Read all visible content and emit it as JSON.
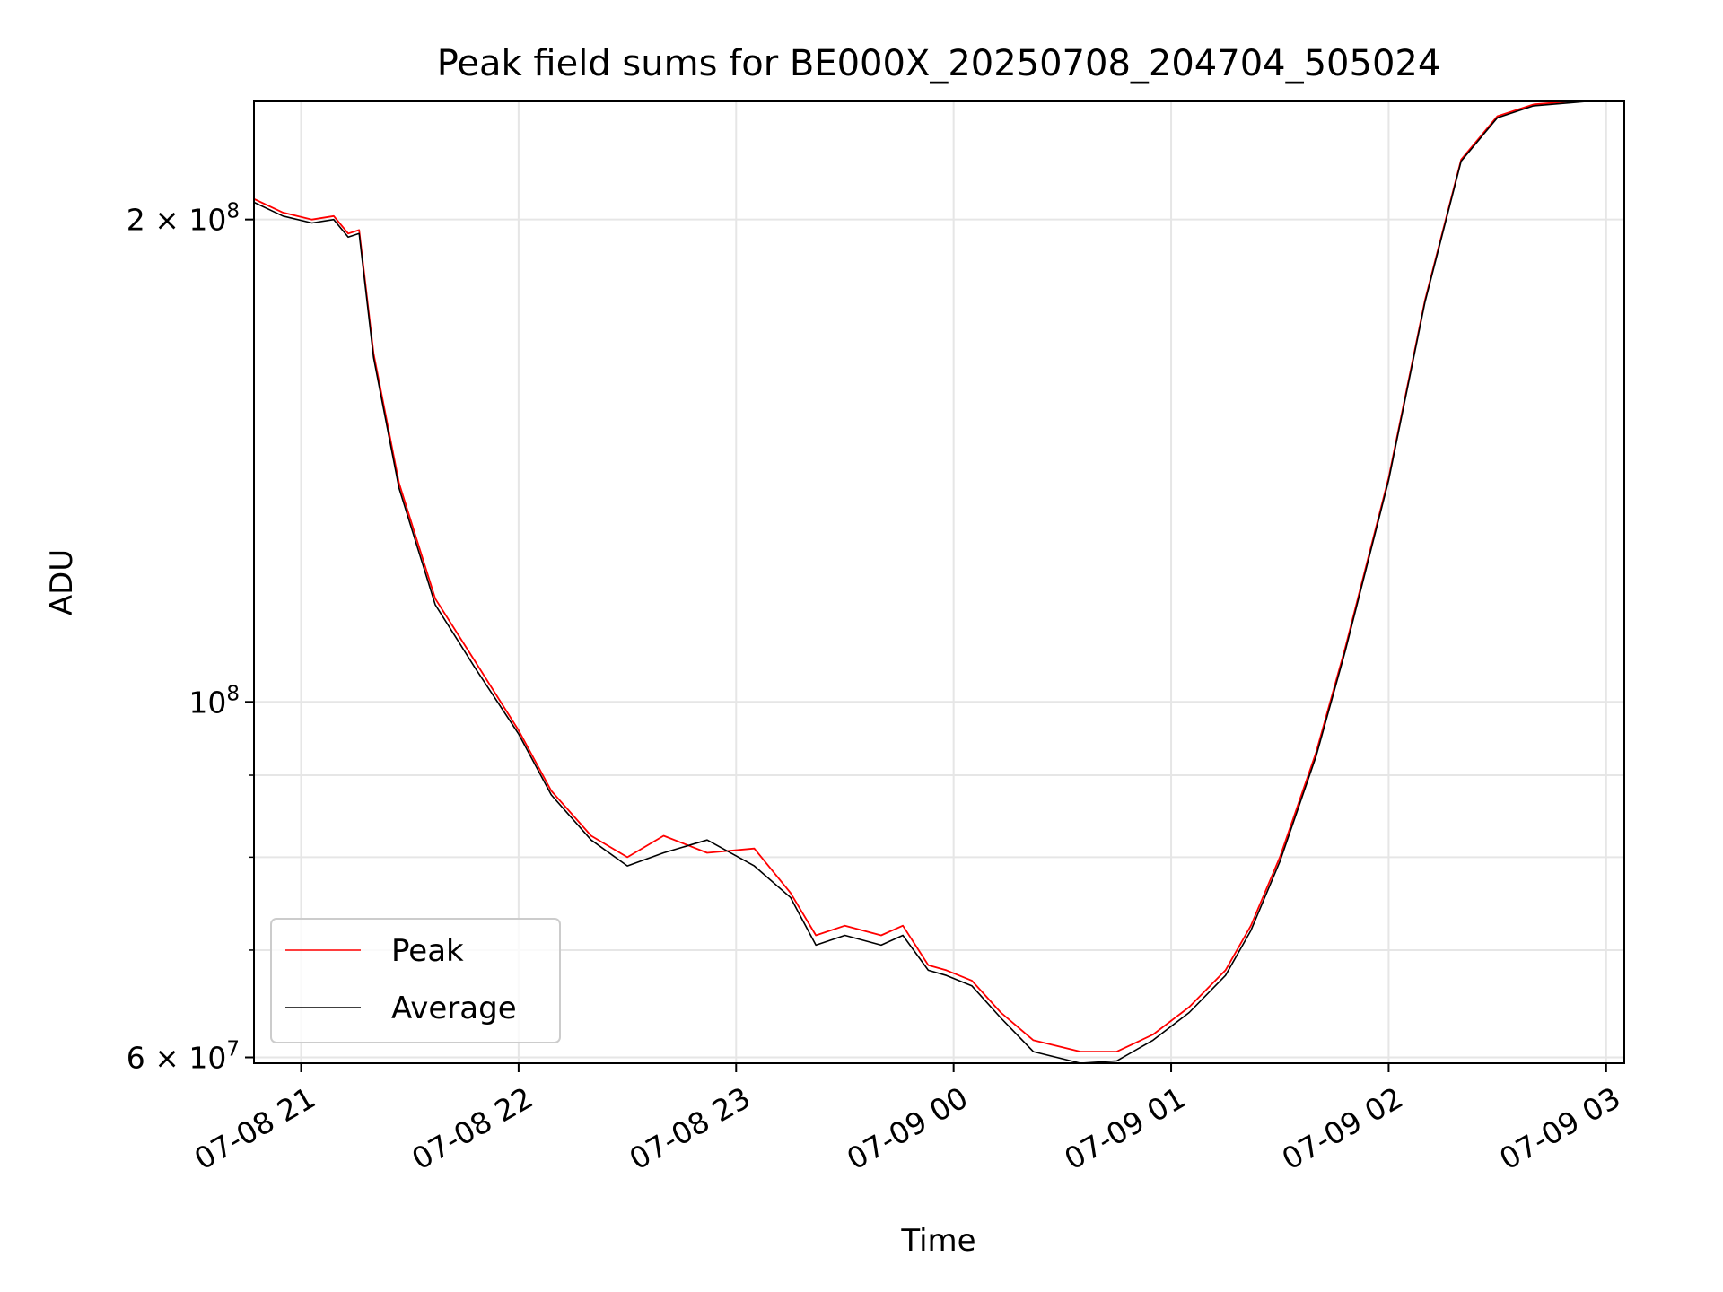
{
  "chart_data": {
    "type": "line",
    "title": "Peak field sums for BE000X_20250708_204704_505024",
    "xlabel": "Time",
    "ylabel": "ADU",
    "xscale": "time",
    "yscale": "log",
    "xlim": [
      "2025-07-08 20:47",
      "2025-07-09 03:05"
    ],
    "ylim": [
      59500000,
      237000000
    ],
    "grid": true,
    "legend_position": "lower-left",
    "x_ticks": [
      "07-08 21",
      "07-08 22",
      "07-08 23",
      "07-09 00",
      "07-09 01",
      "07-09 02",
      "07-09 03"
    ],
    "y_ticks": [
      {
        "value": 60000000,
        "base": "6 × 10",
        "exp": "7"
      },
      {
        "value": 100000000,
        "base": "10",
        "exp": "8"
      },
      {
        "value": 200000000,
        "base": "2 × 10",
        "exp": "8"
      }
    ],
    "y_minor_ticks": [
      70000000,
      80000000,
      90000000
    ],
    "colors": {
      "peak": "#ff0000",
      "average": "#000000",
      "grid": "#e6e6e6"
    },
    "series": [
      {
        "name": "Peak",
        "x": [
          "2025-07-08 20:47",
          "2025-07-08 20:55",
          "2025-07-08 21:03",
          "2025-07-08 21:09",
          "2025-07-08 21:13",
          "2025-07-08 21:16",
          "2025-07-08 21:20",
          "2025-07-08 21:27",
          "2025-07-08 21:37",
          "2025-07-08 21:48",
          "2025-07-08 22:00",
          "2025-07-08 22:09",
          "2025-07-08 22:20",
          "2025-07-08 22:30",
          "2025-07-08 22:40",
          "2025-07-08 22:52",
          "2025-07-08 23:05",
          "2025-07-08 23:15",
          "2025-07-08 23:22",
          "2025-07-08 23:30",
          "2025-07-08 23:40",
          "2025-07-08 23:46",
          "2025-07-08 23:53",
          "2025-07-08 23:58",
          "2025-07-09 00:05",
          "2025-07-09 00:13",
          "2025-07-09 00:22",
          "2025-07-09 00:35",
          "2025-07-09 00:45",
          "2025-07-09 00:55",
          "2025-07-09 01:05",
          "2025-07-09 01:15",
          "2025-07-09 01:22",
          "2025-07-09 01:30",
          "2025-07-09 01:40",
          "2025-07-09 01:48",
          "2025-07-09 02:00",
          "2025-07-09 02:10",
          "2025-07-09 02:20",
          "2025-07-09 02:30",
          "2025-07-09 02:40",
          "2025-07-09 02:50",
          "2025-07-09 02:59"
        ],
        "y": [
          206000000,
          202000000,
          200000000,
          201000000,
          196000000,
          197000000,
          165000000,
          137000000,
          116000000,
          106000000,
          96000000,
          88000000,
          82500000,
          80000000,
          82500000,
          80500000,
          81000000,
          76000000,
          71500000,
          72500000,
          71500000,
          72500000,
          68500000,
          68000000,
          67000000,
          64000000,
          61500000,
          60500000,
          60500000,
          62000000,
          64500000,
          68000000,
          72500000,
          80000000,
          93000000,
          108000000,
          138000000,
          178000000,
          218000000,
          232000000,
          236000000,
          237000000,
          238000000
        ]
      },
      {
        "name": "Average",
        "x": [
          "2025-07-08 20:47",
          "2025-07-08 20:55",
          "2025-07-08 21:03",
          "2025-07-08 21:09",
          "2025-07-08 21:13",
          "2025-07-08 21:16",
          "2025-07-08 21:20",
          "2025-07-08 21:27",
          "2025-07-08 21:37",
          "2025-07-08 21:48",
          "2025-07-08 22:00",
          "2025-07-08 22:09",
          "2025-07-08 22:20",
          "2025-07-08 22:30",
          "2025-07-08 22:40",
          "2025-07-08 22:52",
          "2025-07-08 23:05",
          "2025-07-08 23:15",
          "2025-07-08 23:22",
          "2025-07-08 23:30",
          "2025-07-08 23:40",
          "2025-07-08 23:46",
          "2025-07-08 23:53",
          "2025-07-08 23:58",
          "2025-07-09 00:05",
          "2025-07-09 00:13",
          "2025-07-09 00:22",
          "2025-07-09 00:35",
          "2025-07-09 00:45",
          "2025-07-09 00:55",
          "2025-07-09 01:05",
          "2025-07-09 01:15",
          "2025-07-09 01:22",
          "2025-07-09 01:30",
          "2025-07-09 01:40",
          "2025-07-09 01:48",
          "2025-07-09 02:00",
          "2025-07-09 02:10",
          "2025-07-09 02:20",
          "2025-07-09 02:30",
          "2025-07-09 02:40",
          "2025-07-09 02:50",
          "2025-07-09 02:59"
        ],
        "y": [
          205000000,
          201000000,
          199000000,
          200000000,
          195000000,
          196000000,
          164000000,
          136000000,
          115000000,
          105000000,
          95500000,
          87500000,
          82000000,
          79000000,
          80500000,
          82000000,
          79000000,
          75500000,
          70500000,
          71500000,
          70500000,
          71500000,
          68000000,
          67500000,
          66500000,
          63500000,
          60500000,
          59500000,
          59700000,
          61500000,
          64000000,
          67500000,
          72000000,
          79500000,
          92500000,
          107500000,
          137500000,
          177500000,
          217500000,
          231500000,
          235500000,
          236500000,
          237500000
        ]
      }
    ]
  }
}
